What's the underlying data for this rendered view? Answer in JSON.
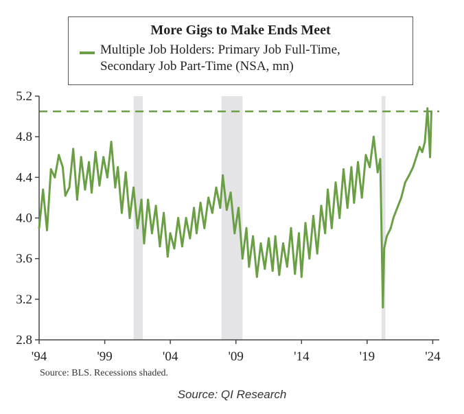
{
  "chart_data": {
    "type": "line",
    "title": "More Gigs to Make Ends Meet",
    "series": [
      {
        "name": "Multiple Job Holders: Primary Job Full-Time, Secondary Job Part-Time (NSA, mn)",
        "color": "#6a9f45",
        "x": [
          1994.0,
          1994.3,
          1994.6,
          1994.9,
          1995.2,
          1995.5,
          1995.8,
          1996.0,
          1996.3,
          1996.6,
          1996.9,
          1997.2,
          1997.5,
          1997.8,
          1998.0,
          1998.3,
          1998.6,
          1998.9,
          1999.2,
          1999.5,
          1999.8,
          2000.0,
          2000.3,
          2000.6,
          2000.9,
          2001.2,
          2001.5,
          2001.8,
          2002.0,
          2002.3,
          2002.6,
          2002.9,
          2003.2,
          2003.5,
          2003.8,
          2004.0,
          2004.3,
          2004.6,
          2004.9,
          2005.2,
          2005.5,
          2005.8,
          2006.0,
          2006.3,
          2006.6,
          2006.9,
          2007.2,
          2007.5,
          2007.8,
          2008.0,
          2008.3,
          2008.6,
          2008.9,
          2009.2,
          2009.5,
          2009.8,
          2010.0,
          2010.3,
          2010.6,
          2010.9,
          2011.2,
          2011.5,
          2011.8,
          2012.0,
          2012.3,
          2012.6,
          2012.9,
          2013.2,
          2013.5,
          2013.8,
          2014.0,
          2014.3,
          2014.6,
          2014.9,
          2015.2,
          2015.5,
          2015.8,
          2016.0,
          2016.3,
          2016.6,
          2016.9,
          2017.2,
          2017.5,
          2017.8,
          2018.0,
          2018.3,
          2018.6,
          2018.9,
          2019.2,
          2019.5,
          2019.8,
          2020.0,
          2020.2,
          2020.3,
          2020.5,
          2020.8,
          2021.0,
          2021.3,
          2021.6,
          2021.9,
          2022.2,
          2022.5,
          2022.8,
          2023.0,
          2023.2,
          2023.4,
          2023.6,
          2023.8,
          2023.9
        ],
        "values": [
          3.9,
          4.28,
          3.88,
          4.48,
          4.4,
          4.62,
          4.5,
          4.22,
          4.3,
          4.68,
          4.18,
          4.6,
          4.28,
          4.55,
          4.25,
          4.65,
          4.32,
          4.6,
          4.4,
          4.75,
          4.3,
          4.5,
          4.05,
          4.45,
          4.0,
          4.3,
          3.9,
          4.18,
          3.75,
          4.18,
          3.85,
          4.12,
          3.72,
          4.05,
          3.62,
          3.85,
          3.7,
          4.0,
          3.72,
          4.0,
          3.8,
          4.1,
          3.85,
          4.15,
          3.9,
          4.2,
          4.05,
          4.3,
          4.1,
          4.42,
          4.08,
          4.25,
          3.85,
          4.1,
          3.6,
          3.9,
          3.52,
          3.82,
          3.42,
          3.75,
          3.5,
          3.8,
          3.48,
          3.82,
          3.44,
          3.75,
          3.52,
          3.9,
          3.45,
          3.85,
          3.42,
          3.95,
          3.6,
          4.02,
          3.65,
          4.12,
          3.85,
          4.28,
          3.9,
          4.35,
          4.0,
          4.48,
          4.1,
          4.5,
          4.15,
          4.55,
          4.2,
          4.62,
          4.5,
          4.8,
          4.45,
          4.58,
          3.12,
          3.7,
          3.82,
          3.9,
          4.0,
          4.1,
          4.2,
          4.35,
          4.42,
          4.5,
          4.62,
          4.7,
          4.65,
          4.75,
          5.08,
          4.6,
          5.05
        ]
      }
    ],
    "reference_line": {
      "value": 5.05,
      "style": "dashed"
    },
    "recessions": [
      [
        2001.2,
        2001.9
      ],
      [
        2007.9,
        2009.5
      ],
      [
        2020.1,
        2020.4
      ]
    ],
    "xlim": [
      1994,
      2024.5
    ],
    "ylim": [
      2.8,
      5.2
    ],
    "xticks": [
      1994,
      1999,
      2004,
      2009,
      2014,
      2019,
      2024
    ],
    "xtick_labels": [
      "'94",
      "'99",
      "'04",
      "'09",
      "'14",
      "'19",
      "'24"
    ],
    "yticks": [
      2.8,
      3.2,
      3.6,
      4.0,
      4.4,
      4.8,
      5.2
    ],
    "ytick_labels": [
      "2.8",
      "3.2",
      "3.6",
      "4.0",
      "4.4",
      "4.8",
      "5.2"
    ],
    "grid": false,
    "legend_position": "top"
  },
  "legend_label_lines": [
    "Multiple Job Holders: Primary Job Full-Time,",
    "Secondary Job Part-Time (NSA, mn)"
  ],
  "source_note": "Source: BLS. Recessions shaded.",
  "caption": "Source: QI Research",
  "colors": {
    "line": "#6a9f45",
    "recession": "#e4e4e7",
    "axis": "#444444"
  }
}
